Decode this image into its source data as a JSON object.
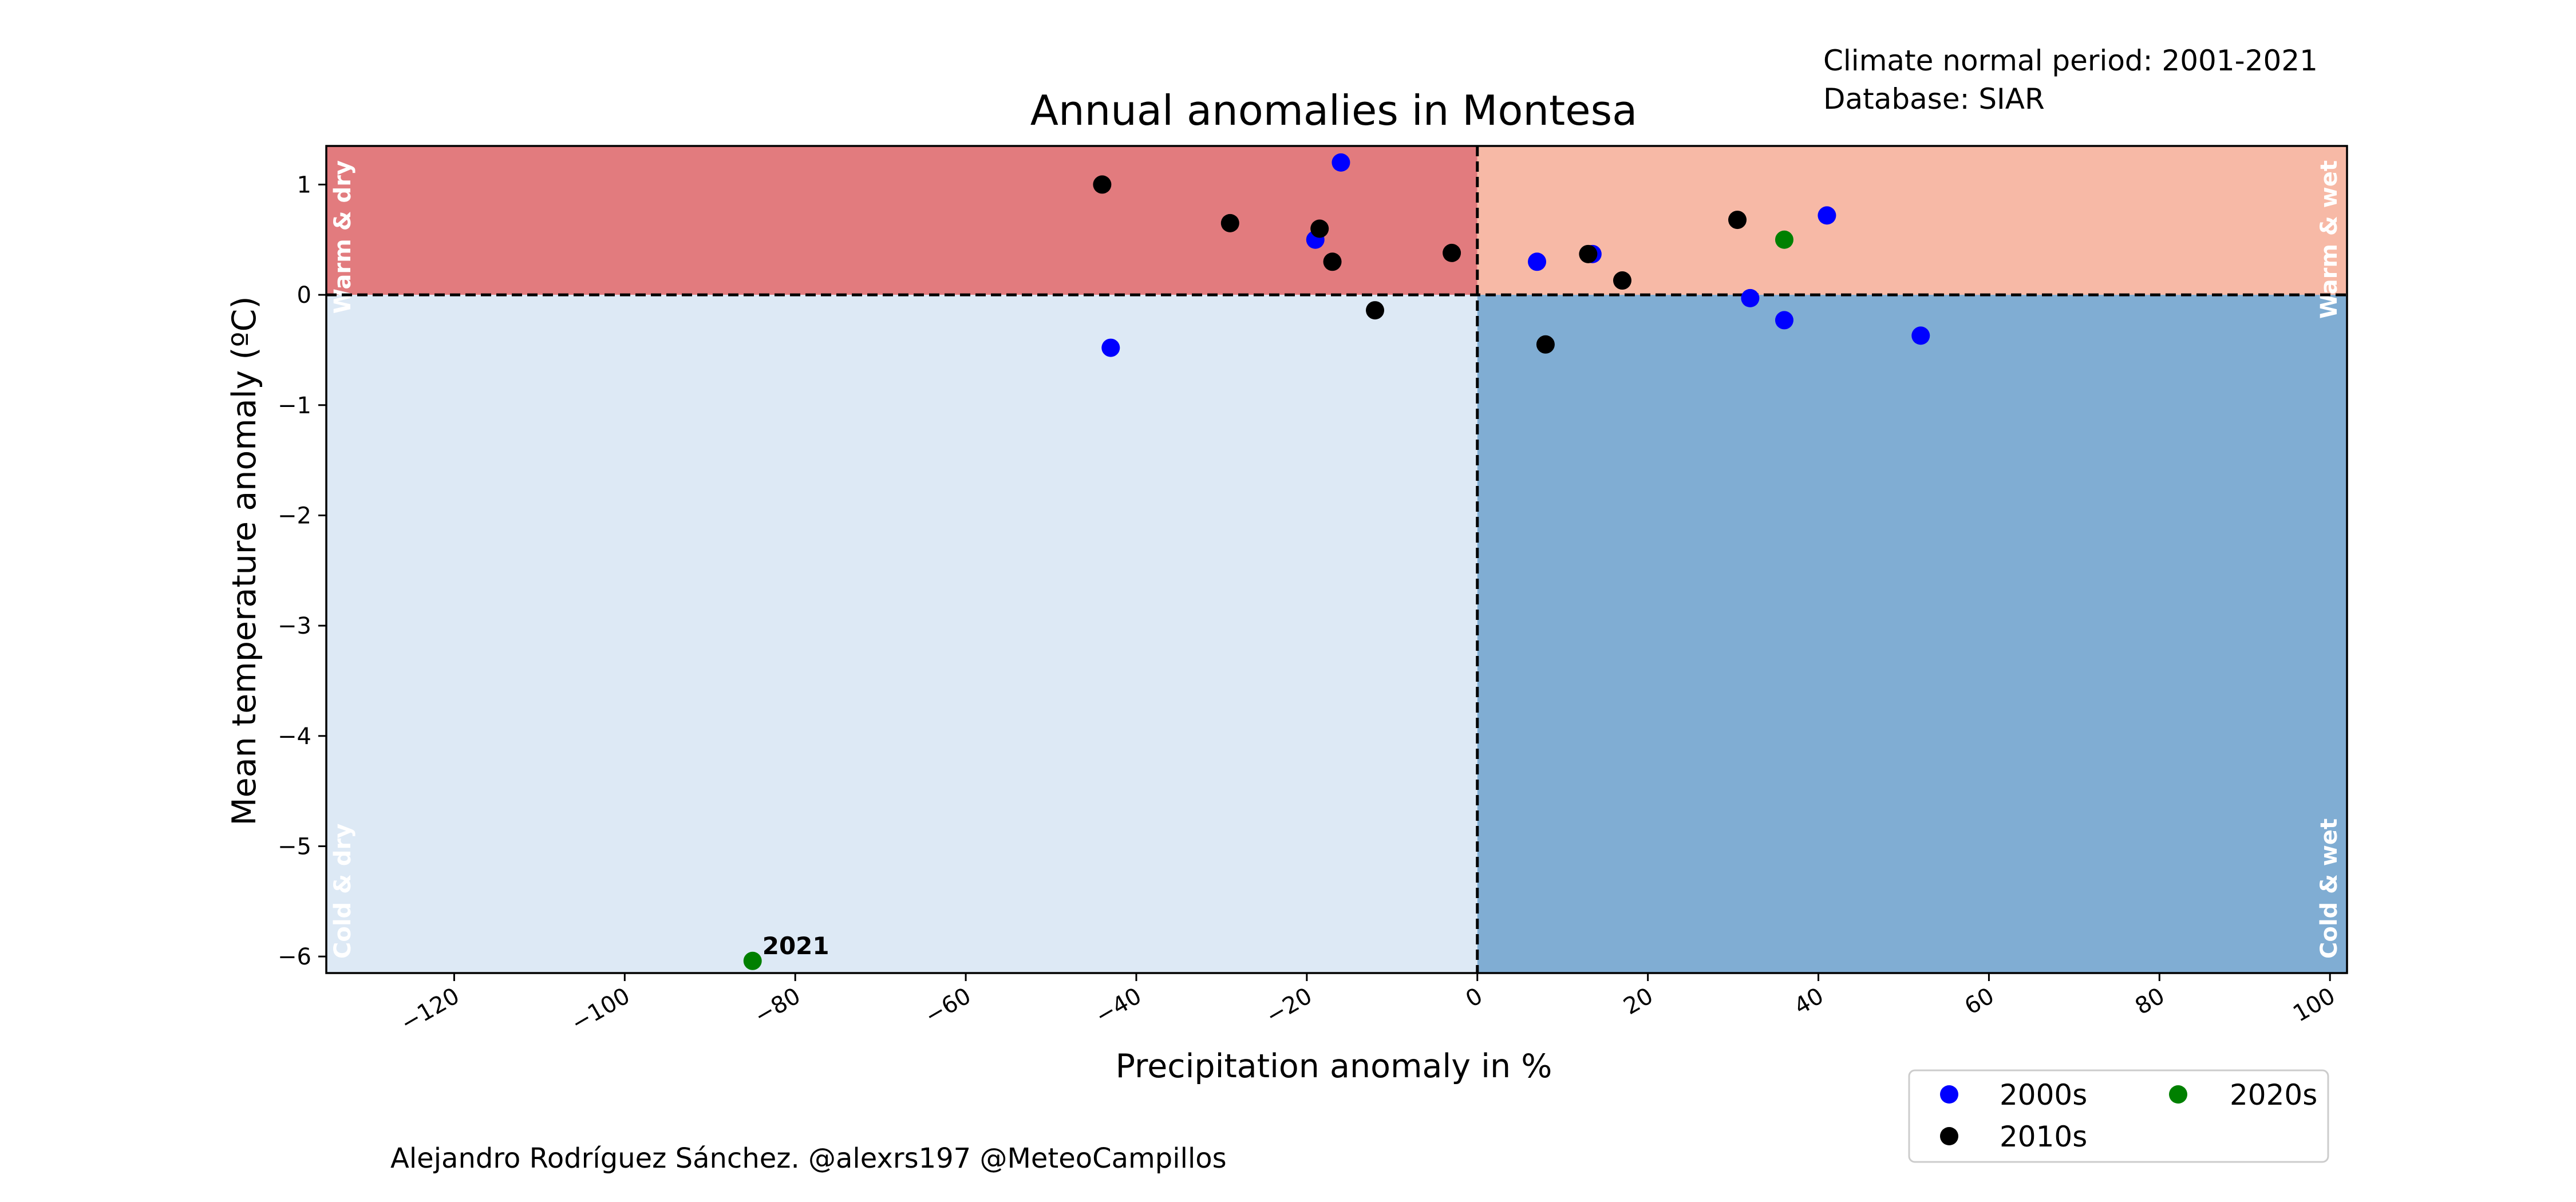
{
  "chart_data": {
    "type": "scatter",
    "title": "Annual anomalies in Montesa",
    "xlabel": "Precipitation anomaly in %",
    "ylabel": "Mean temperature anomaly (ºC)",
    "xlim": [
      -135,
      102
    ],
    "ylim": [
      -6.15,
      1.35
    ],
    "xticks": [
      -120,
      -100,
      -80,
      -60,
      -40,
      -20,
      0,
      20,
      40,
      60,
      80,
      100
    ],
    "xtick_labels": [
      "−120",
      "−100",
      "−80",
      "−60",
      "−40",
      "−20",
      "0",
      "20",
      "40",
      "60",
      "80",
      "100"
    ],
    "yticks": [
      1,
      0,
      -1,
      -2,
      -3,
      -4,
      -5,
      -6
    ],
    "ytick_labels": [
      "1",
      "0",
      "−1",
      "−2",
      "−3",
      "−4",
      "−5",
      "−6"
    ],
    "quadrants": {
      "warm_dry": {
        "label": "Warm & dry",
        "color": "#e27b7e"
      },
      "warm_wet": {
        "label": "Warm & wet",
        "color": "#f7b9a6"
      },
      "cold_dry": {
        "label": "Cold & dry",
        "color": "#dde9f5"
      },
      "cold_wet": {
        "label": "Cold & wet",
        "color": "#80add3"
      }
    },
    "series": [
      {
        "name": "2000s",
        "color": "#0000ff",
        "points": [
          {
            "x": -16,
            "y": 1.2
          },
          {
            "x": -19,
            "y": 0.5
          },
          {
            "x": -43,
            "y": -0.48
          },
          {
            "x": 7,
            "y": 0.3
          },
          {
            "x": 13.5,
            "y": 0.37
          },
          {
            "x": 41,
            "y": 0.72
          },
          {
            "x": 32,
            "y": -0.03
          },
          {
            "x": 36,
            "y": -0.23
          },
          {
            "x": 52,
            "y": -0.37
          }
        ]
      },
      {
        "name": "2010s",
        "color": "#000000",
        "points": [
          {
            "x": -44,
            "y": 1.0
          },
          {
            "x": -29,
            "y": 0.65
          },
          {
            "x": -18.5,
            "y": 0.6
          },
          {
            "x": -17,
            "y": 0.3
          },
          {
            "x": -12,
            "y": -0.14
          },
          {
            "x": -3,
            "y": 0.38
          },
          {
            "x": 8,
            "y": -0.45
          },
          {
            "x": 13,
            "y": 0.37
          },
          {
            "x": 17,
            "y": 0.13
          },
          {
            "x": 30.5,
            "y": 0.68
          }
        ]
      },
      {
        "name": "2020s",
        "color": "#008000",
        "points": [
          {
            "x": 36,
            "y": 0.5
          },
          {
            "x": -85,
            "y": -6.04,
            "label": "2021"
          }
        ]
      }
    ],
    "legend": {
      "position": "bottom-right",
      "ncol": 2
    }
  },
  "info": {
    "line1": "Climate normal period: 2001-2021",
    "line2": "Database: SIAR"
  },
  "credit": "Alejandro Rodríguez Sánchez. @alexrs197 @MeteoCampillos"
}
